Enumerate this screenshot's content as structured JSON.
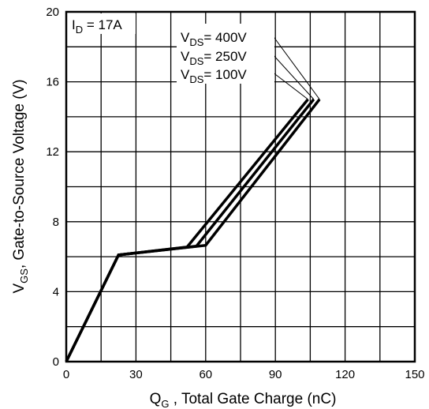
{
  "chart_data": {
    "type": "line",
    "title": "",
    "xlabel": {
      "main": "Q",
      "sub": "G",
      "rest": " , Total Gate Charge (nC)"
    },
    "ylabel": {
      "main": "V",
      "sub": "GS",
      "rest": ", Gate-to-Source Voltage (V)"
    },
    "xlim": [
      0,
      150
    ],
    "ylim": [
      0,
      20
    ],
    "x_ticks": [
      0,
      30,
      60,
      90,
      120,
      150
    ],
    "y_ticks": [
      0,
      4,
      8,
      12,
      16,
      20
    ],
    "x_tick_labels": [
      "0",
      "30",
      "60",
      "90",
      "120",
      "150"
    ],
    "y_tick_labels": [
      "0",
      "4",
      "8",
      "12",
      "16",
      "20"
    ],
    "grid": true,
    "condition": {
      "main": "I",
      "sub": "D",
      "rest": " = 17A"
    },
    "series": [
      {
        "name": {
          "main": "V",
          "sub": "DS",
          "rest": "= 400V"
        },
        "points": [
          [
            0,
            0
          ],
          [
            22.5,
            6.1
          ],
          [
            60,
            6.65
          ],
          [
            109,
            15.0
          ]
        ]
      },
      {
        "name": {
          "main": "V",
          "sub": "DS",
          "rest": "= 250V"
        },
        "points": [
          [
            0,
            0
          ],
          [
            22.5,
            6.1
          ],
          [
            56,
            6.6
          ],
          [
            106.5,
            15.0
          ]
        ]
      },
      {
        "name": {
          "main": "V",
          "sub": "DS",
          "rest": "= 100V"
        },
        "points": [
          [
            0,
            0
          ],
          [
            22.5,
            6.1
          ],
          [
            52,
            6.55
          ],
          [
            104,
            15.0
          ]
        ]
      }
    ]
  }
}
